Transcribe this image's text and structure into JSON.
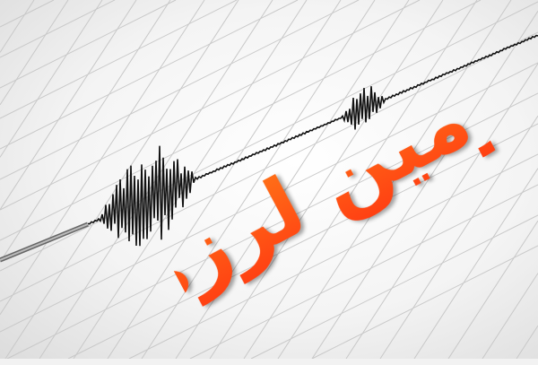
{
  "image": {
    "title_text": "زمین لرزه",
    "colors": {
      "text_top": "#ff8a1a",
      "text_bottom": "#ff2a10",
      "trace": "#111111",
      "grid": "#c8c8c8"
    }
  }
}
